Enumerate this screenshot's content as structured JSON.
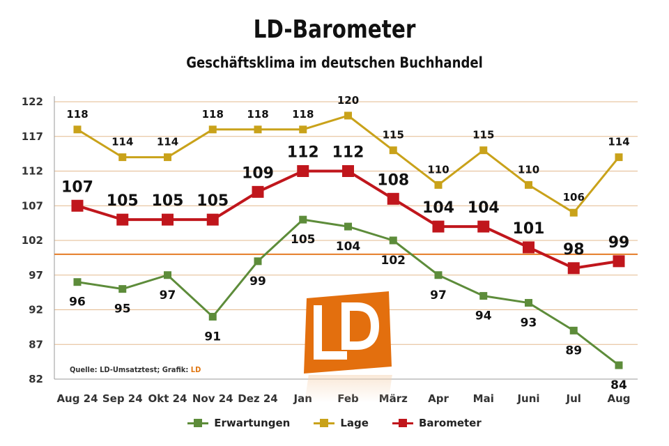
{
  "header": {
    "title": "LD-Barometer",
    "subtitle": "Geschäftsklima im deutschen Buchhandel"
  },
  "source": {
    "prefix": "Quelle: LD-Umsatztest; Grafik:",
    "brand": "LD"
  },
  "logo": {
    "icon": "ld-logo-icon",
    "text": "LD"
  },
  "colors": {
    "erwartungen": "#5d8c3a",
    "lage": "#c9a21a",
    "barometer": "#c0161c",
    "reference_line": "#e57b26",
    "gridline": "#e3b98e",
    "logo_orange": "#e36f0e"
  },
  "chart_data": {
    "type": "line",
    "title": "LD-Barometer",
    "subtitle": "Geschäftsklima im deutschen Buchhandel",
    "categories": [
      "Aug 24",
      "Sep 24",
      "Okt 24",
      "Nov 24",
      "Dez 24",
      "Jan",
      "Feb",
      "März",
      "Apr",
      "Mai",
      "Juni",
      "Jul",
      "Aug"
    ],
    "y_ticks": [
      82,
      87,
      92,
      97,
      102,
      107,
      112,
      117,
      122
    ],
    "ylim": [
      82,
      122
    ],
    "reference_value": 100,
    "grid": true,
    "legend_position": "bottom",
    "series": [
      {
        "name": "Erwartungen",
        "values": [
          96,
          95,
          97,
          91,
          99,
          105,
          104,
          102,
          97,
          94,
          93,
          89,
          84
        ]
      },
      {
        "name": "Lage",
        "values": [
          118,
          114,
          114,
          118,
          118,
          118,
          120,
          115,
          110,
          115,
          110,
          106,
          114
        ]
      },
      {
        "name": "Barometer",
        "values": [
          107,
          105,
          105,
          105,
          109,
          112,
          112,
          108,
          104,
          104,
          101,
          98,
          99
        ]
      }
    ]
  }
}
